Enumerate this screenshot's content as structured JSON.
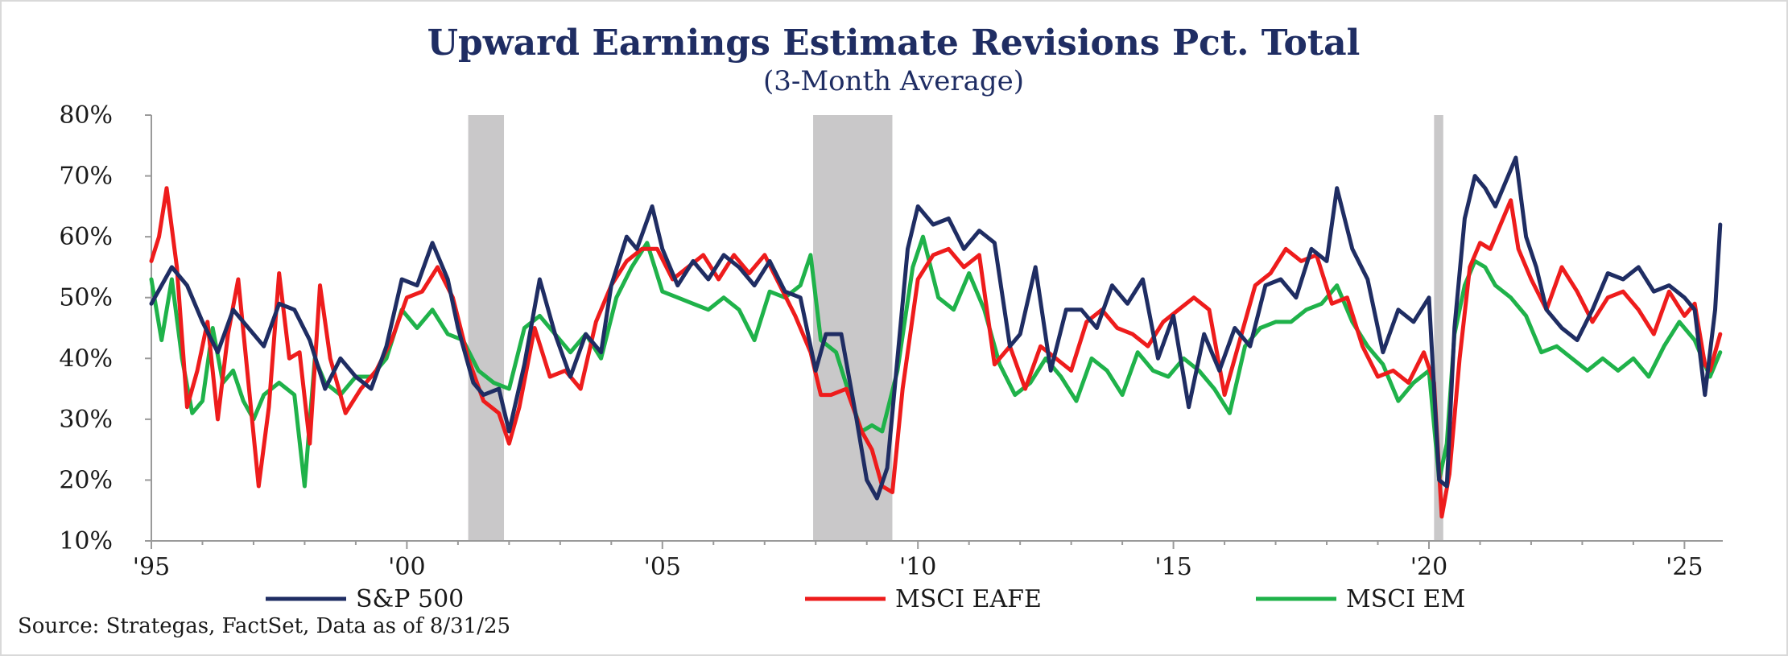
{
  "chart_data": {
    "type": "line",
    "title": "Upward Earnings Estimate Revisions Pct. Total",
    "subtitle": "(3-Month Average)",
    "source": "Source: Strategas, FactSet, Data as of 8/31/25",
    "ylim": [
      0.1,
      0.8
    ],
    "xlim": [
      1995.0,
      2025.75
    ],
    "yticks": [
      {
        "value": 0.1,
        "label": "10%"
      },
      {
        "value": 0.2,
        "label": "20%"
      },
      {
        "value": 0.3,
        "label": "30%"
      },
      {
        "value": 0.4,
        "label": "40%"
      },
      {
        "value": 0.5,
        "label": "50%"
      },
      {
        "value": 0.6,
        "label": "60%"
      },
      {
        "value": 0.7,
        "label": "70%"
      },
      {
        "value": 0.8,
        "label": "80%"
      }
    ],
    "xticks": [
      {
        "value": 1995,
        "label": "'95"
      },
      {
        "value": 2000,
        "label": "'00"
      },
      {
        "value": 2005,
        "label": "'05"
      },
      {
        "value": 2010,
        "label": "'10"
      },
      {
        "value": 2015,
        "label": "'15"
      },
      {
        "value": 2020,
        "label": "'20"
      },
      {
        "value": 2025,
        "label": "'25"
      }
    ],
    "grid": false,
    "legend_position": "bottom",
    "recession_bands": [
      [
        2001.2,
        2001.9
      ],
      [
        2007.95,
        2009.5
      ],
      [
        2020.1,
        2020.28
      ]
    ],
    "colors": {
      "band": "#c9c8c9",
      "axis": "#9a9a9a"
    },
    "series": [
      {
        "name": "S&P 500",
        "color": "#1f2d63",
        "x": [
          1995.0,
          1995.2,
          1995.4,
          1995.7,
          1996.0,
          1996.3,
          1996.6,
          1996.9,
          1997.2,
          1997.5,
          1997.8,
          1998.1,
          1998.4,
          1998.7,
          1999.0,
          1999.3,
          1999.6,
          1999.9,
          2000.2,
          2000.5,
          2000.8,
          2001.0,
          2001.3,
          2001.5,
          2001.8,
          2002.0,
          2002.3,
          2002.6,
          2002.9,
          2003.2,
          2003.5,
          2003.8,
          2004.0,
          2004.3,
          2004.5,
          2004.8,
          2005.0,
          2005.3,
          2005.6,
          2005.9,
          2006.2,
          2006.5,
          2006.8,
          2007.1,
          2007.4,
          2007.7,
          2008.0,
          2008.2,
          2008.5,
          2008.8,
          2009.0,
          2009.2,
          2009.4,
          2009.6,
          2009.8,
          2010.0,
          2010.3,
          2010.6,
          2010.9,
          2011.2,
          2011.5,
          2011.8,
          2012.0,
          2012.3,
          2012.6,
          2012.9,
          2013.2,
          2013.5,
          2013.8,
          2014.1,
          2014.4,
          2014.7,
          2015.0,
          2015.3,
          2015.6,
          2015.9,
          2016.2,
          2016.5,
          2016.8,
          2017.1,
          2017.4,
          2017.7,
          2018.0,
          2018.2,
          2018.5,
          2018.8,
          2019.1,
          2019.4,
          2019.7,
          2020.0,
          2020.2,
          2020.35,
          2020.5,
          2020.7,
          2020.9,
          2021.1,
          2021.3,
          2021.5,
          2021.7,
          2021.9,
          2022.1,
          2022.3,
          2022.6,
          2022.9,
          2023.2,
          2023.5,
          2023.8,
          2024.1,
          2024.4,
          2024.7,
          2025.0,
          2025.2,
          2025.4,
          2025.6,
          2025.7
        ],
        "y": [
          0.49,
          0.52,
          0.55,
          0.52,
          0.46,
          0.41,
          0.48,
          0.45,
          0.42,
          0.49,
          0.48,
          0.43,
          0.35,
          0.4,
          0.37,
          0.35,
          0.42,
          0.53,
          0.52,
          0.59,
          0.53,
          0.45,
          0.36,
          0.34,
          0.35,
          0.28,
          0.39,
          0.53,
          0.44,
          0.37,
          0.44,
          0.41,
          0.52,
          0.6,
          0.58,
          0.65,
          0.58,
          0.52,
          0.56,
          0.53,
          0.57,
          0.55,
          0.52,
          0.56,
          0.51,
          0.5,
          0.38,
          0.44,
          0.44,
          0.3,
          0.2,
          0.17,
          0.22,
          0.4,
          0.58,
          0.65,
          0.62,
          0.63,
          0.58,
          0.61,
          0.59,
          0.42,
          0.44,
          0.55,
          0.38,
          0.48,
          0.48,
          0.45,
          0.52,
          0.49,
          0.53,
          0.4,
          0.47,
          0.32,
          0.44,
          0.38,
          0.45,
          0.42,
          0.52,
          0.53,
          0.5,
          0.58,
          0.56,
          0.68,
          0.58,
          0.53,
          0.41,
          0.48,
          0.46,
          0.5,
          0.2,
          0.19,
          0.45,
          0.63,
          0.7,
          0.68,
          0.65,
          0.69,
          0.73,
          0.6,
          0.55,
          0.48,
          0.45,
          0.43,
          0.48,
          0.54,
          0.53,
          0.55,
          0.51,
          0.52,
          0.5,
          0.48,
          0.34,
          0.48,
          0.62
        ]
      },
      {
        "name": "MSCI EAFE",
        "color": "#ee1c1c",
        "x": [
          1995.0,
          1995.15,
          1995.3,
          1995.5,
          1995.7,
          1995.9,
          1996.1,
          1996.3,
          1996.5,
          1996.7,
          1996.9,
          1997.1,
          1997.3,
          1997.5,
          1997.7,
          1997.9,
          1998.1,
          1998.3,
          1998.5,
          1998.8,
          1999.1,
          1999.4,
          1999.7,
          2000.0,
          2000.3,
          2000.6,
          2000.9,
          2001.2,
          2001.5,
          2001.8,
          2002.0,
          2002.2,
          2002.5,
          2002.8,
          2003.1,
          2003.4,
          2003.7,
          2004.0,
          2004.3,
          2004.6,
          2004.9,
          2005.2,
          2005.5,
          2005.8,
          2006.1,
          2006.4,
          2006.7,
          2007.0,
          2007.3,
          2007.6,
          2007.9,
          2008.1,
          2008.3,
          2008.6,
          2008.9,
          2009.1,
          2009.3,
          2009.5,
          2009.7,
          2010.0,
          2010.3,
          2010.6,
          2010.9,
          2011.2,
          2011.5,
          2011.8,
          2012.1,
          2012.4,
          2012.7,
          2013.0,
          2013.3,
          2013.6,
          2013.9,
          2014.2,
          2014.5,
          2014.8,
          2015.1,
          2015.4,
          2015.7,
          2016.0,
          2016.3,
          2016.6,
          2016.9,
          2017.2,
          2017.5,
          2017.8,
          2018.1,
          2018.4,
          2018.7,
          2019.0,
          2019.3,
          2019.6,
          2019.9,
          2020.1,
          2020.25,
          2020.4,
          2020.6,
          2020.8,
          2021.0,
          2021.2,
          2021.4,
          2021.6,
          2021.75,
          2022.0,
          2022.3,
          2022.6,
          2022.9,
          2023.2,
          2023.5,
          2023.8,
          2024.1,
          2024.4,
          2024.7,
          2025.0,
          2025.2,
          2025.4,
          2025.5,
          2025.7
        ],
        "y": [
          0.56,
          0.6,
          0.68,
          0.55,
          0.32,
          0.38,
          0.46,
          0.3,
          0.44,
          0.53,
          0.36,
          0.19,
          0.32,
          0.54,
          0.4,
          0.41,
          0.26,
          0.52,
          0.4,
          0.31,
          0.35,
          0.38,
          0.43,
          0.5,
          0.51,
          0.55,
          0.5,
          0.4,
          0.33,
          0.31,
          0.26,
          0.32,
          0.45,
          0.37,
          0.38,
          0.35,
          0.46,
          0.52,
          0.56,
          0.58,
          0.58,
          0.53,
          0.55,
          0.57,
          0.53,
          0.57,
          0.54,
          0.57,
          0.52,
          0.47,
          0.41,
          0.34,
          0.34,
          0.35,
          0.28,
          0.25,
          0.19,
          0.18,
          0.35,
          0.53,
          0.57,
          0.58,
          0.55,
          0.57,
          0.39,
          0.42,
          0.35,
          0.42,
          0.4,
          0.38,
          0.46,
          0.48,
          0.45,
          0.44,
          0.42,
          0.46,
          0.48,
          0.5,
          0.48,
          0.34,
          0.43,
          0.52,
          0.54,
          0.58,
          0.56,
          0.57,
          0.49,
          0.5,
          0.42,
          0.37,
          0.38,
          0.36,
          0.41,
          0.36,
          0.14,
          0.21,
          0.4,
          0.55,
          0.59,
          0.58,
          0.62,
          0.66,
          0.58,
          0.53,
          0.48,
          0.55,
          0.51,
          0.46,
          0.5,
          0.51,
          0.48,
          0.44,
          0.51,
          0.47,
          0.49,
          0.39,
          0.38,
          0.44
        ]
      },
      {
        "name": "MSCI EM",
        "color": "#1fb24a",
        "x": [
          1995.0,
          1995.2,
          1995.4,
          1995.6,
          1995.8,
          1996.0,
          1996.2,
          1996.4,
          1996.6,
          1996.8,
          1997.0,
          1997.2,
          1997.5,
          1997.8,
          1998.0,
          1998.2,
          1998.4,
          1998.7,
          1999.0,
          1999.3,
          1999.6,
          1999.9,
          2000.2,
          2000.5,
          2000.8,
          2001.1,
          2001.4,
          2001.7,
          2002.0,
          2002.3,
          2002.6,
          2002.9,
          2003.2,
          2003.5,
          2003.8,
          2004.1,
          2004.4,
          2004.7,
          2005.0,
          2005.3,
          2005.6,
          2005.9,
          2006.2,
          2006.5,
          2006.8,
          2007.1,
          2007.4,
          2007.7,
          2007.9,
          2008.1,
          2008.4,
          2008.7,
          2008.9,
          2009.1,
          2009.3,
          2009.6,
          2009.9,
          2010.1,
          2010.4,
          2010.7,
          2011.0,
          2011.3,
          2011.6,
          2011.9,
          2012.2,
          2012.5,
          2012.8,
          2013.1,
          2013.4,
          2013.7,
          2014.0,
          2014.3,
          2014.6,
          2014.9,
          2015.2,
          2015.5,
          2015.8,
          2016.1,
          2016.4,
          2016.7,
          2017.0,
          2017.3,
          2017.6,
          2017.9,
          2018.2,
          2018.5,
          2018.8,
          2019.1,
          2019.4,
          2019.7,
          2020.0,
          2020.2,
          2020.35,
          2020.5,
          2020.7,
          2020.9,
          2021.1,
          2021.3,
          2021.6,
          2021.9,
          2022.2,
          2022.5,
          2022.8,
          2023.1,
          2023.4,
          2023.7,
          2024.0,
          2024.3,
          2024.6,
          2024.9,
          2025.2,
          2025.5,
          2025.7
        ],
        "y": [
          0.53,
          0.43,
          0.53,
          0.4,
          0.31,
          0.33,
          0.45,
          0.36,
          0.38,
          0.33,
          0.3,
          0.34,
          0.36,
          0.34,
          0.19,
          0.4,
          0.36,
          0.34,
          0.37,
          0.37,
          0.4,
          0.48,
          0.45,
          0.48,
          0.44,
          0.43,
          0.38,
          0.36,
          0.35,
          0.45,
          0.47,
          0.44,
          0.41,
          0.44,
          0.4,
          0.5,
          0.55,
          0.59,
          0.51,
          0.5,
          0.49,
          0.48,
          0.5,
          0.48,
          0.43,
          0.51,
          0.5,
          0.52,
          0.57,
          0.43,
          0.41,
          0.33,
          0.28,
          0.29,
          0.28,
          0.38,
          0.55,
          0.6,
          0.5,
          0.48,
          0.54,
          0.48,
          0.39,
          0.34,
          0.36,
          0.4,
          0.37,
          0.33,
          0.4,
          0.38,
          0.34,
          0.41,
          0.38,
          0.37,
          0.4,
          0.38,
          0.35,
          0.31,
          0.42,
          0.45,
          0.46,
          0.46,
          0.48,
          0.49,
          0.52,
          0.46,
          0.42,
          0.39,
          0.33,
          0.36,
          0.38,
          0.2,
          0.26,
          0.44,
          0.52,
          0.56,
          0.55,
          0.52,
          0.5,
          0.47,
          0.41,
          0.42,
          0.4,
          0.38,
          0.4,
          0.38,
          0.4,
          0.37,
          0.42,
          0.46,
          0.43,
          0.37,
          0.41
        ]
      }
    ]
  }
}
